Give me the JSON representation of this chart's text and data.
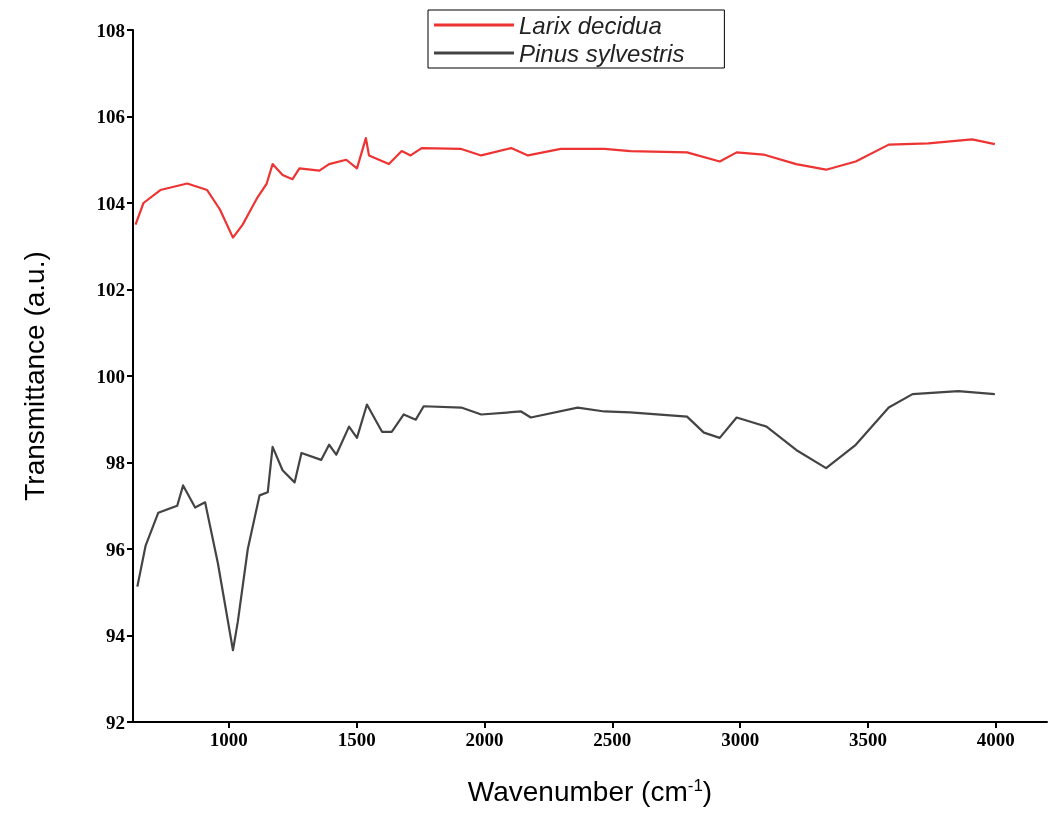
{
  "chart_data": {
    "type": "line",
    "xlabel": "Wavenumber (cm$^{-1}$)",
    "ylabel": "Transmittance (a.u.)",
    "xlim": [
      625,
      4200
    ],
    "xticks": [
      1000,
      1500,
      2000,
      2500,
      3000,
      3500,
      4000
    ],
    "ylim": [
      92,
      108
    ],
    "yticks": [
      92,
      94,
      96,
      98,
      100,
      102,
      104,
      106,
      108
    ],
    "grid": false,
    "legend": "top",
    "marker": "none",
    "line_style": "solid",
    "series": [
      {
        "name": "Larix decidua",
        "color": "#ee3333",
        "x": [
          635,
          666,
          732,
          837,
          915,
          965,
          1016,
          1054,
          1109,
          1148,
          1171,
          1210,
          1249,
          1276,
          1354,
          1392,
          1459,
          1501,
          1536,
          1548,
          1626,
          1676,
          1711,
          1754,
          1909,
          1987,
          2104,
          2170,
          2298,
          2469,
          2570,
          2792,
          2920,
          2986,
          3091,
          3219,
          3336,
          3452,
          3581,
          3736,
          3907,
          3996
        ],
        "values": [
          103.5,
          104.0,
          104.3,
          104.45,
          104.3,
          103.85,
          103.2,
          103.5,
          104.1,
          104.45,
          104.9,
          104.65,
          104.55,
          104.8,
          104.75,
          104.9,
          105.0,
          104.8,
          105.5,
          105.1,
          104.9,
          105.2,
          105.1,
          105.27,
          105.25,
          105.1,
          105.27,
          105.1,
          105.25,
          105.25,
          105.2,
          105.17,
          104.96,
          105.17,
          105.12,
          104.9,
          104.77,
          104.96,
          105.35,
          105.38,
          105.47,
          105.36
        ]
      },
      {
        "name": "Pinus sylvestris",
        "color": "#444444",
        "x": [
          642,
          674,
          724,
          798,
          821,
          868,
          907,
          957,
          1016,
          1035,
          1074,
          1120,
          1152,
          1171,
          1210,
          1257,
          1284,
          1361,
          1392,
          1420,
          1470,
          1501,
          1540,
          1599,
          1637,
          1684,
          1731,
          1762,
          1909,
          1987,
          2143,
          2181,
          2364,
          2469,
          2570,
          2792,
          2858,
          2920,
          2986,
          3103,
          3219,
          3336,
          3452,
          3581,
          3674,
          3853,
          3996
        ],
        "values": [
          95.13,
          96.07,
          96.84,
          97.0,
          97.47,
          96.96,
          97.08,
          95.67,
          93.66,
          94.32,
          96.0,
          97.24,
          97.31,
          98.36,
          97.82,
          97.54,
          98.22,
          98.06,
          98.41,
          98.18,
          98.83,
          98.57,
          99.34,
          98.71,
          98.71,
          99.11,
          98.99,
          99.3,
          99.27,
          99.11,
          99.18,
          99.04,
          99.27,
          99.18,
          99.16,
          99.06,
          98.69,
          98.57,
          99.04,
          98.83,
          98.29,
          97.87,
          98.41,
          99.27,
          99.58,
          99.65,
          99.58
        ]
      }
    ]
  }
}
